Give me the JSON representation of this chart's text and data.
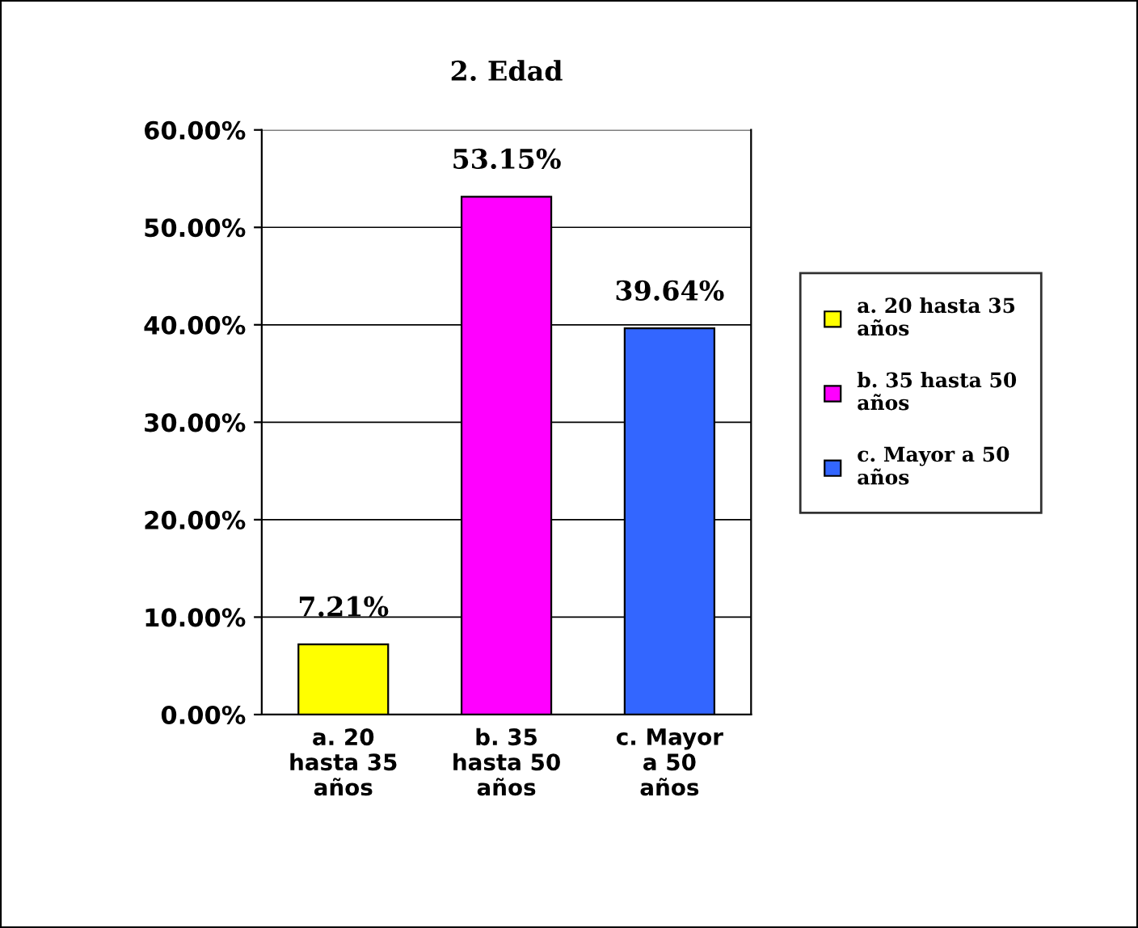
{
  "chart_data": {
    "type": "bar",
    "title": "2. Edad",
    "categories": [
      "a. 20\nhasta 35\naños",
      "b. 35\nhasta 50\naños",
      "c. Mayor\na 50\naños"
    ],
    "series": [
      {
        "name": "a. 20 hasta 35\naños",
        "color": "#ffff00",
        "values": [
          7.21,
          null,
          null
        ],
        "value_labels": [
          "7.21%",
          null,
          null
        ]
      },
      {
        "name": "b. 35 hasta 50\naños",
        "color": "#ff00ff",
        "values": [
          null,
          53.15,
          null
        ],
        "value_labels": [
          null,
          "53.15%",
          null
        ]
      },
      {
        "name": "c. Mayor a 50\naños",
        "color": "#3366ff",
        "values": [
          null,
          null,
          39.64
        ],
        "value_labels": [
          null,
          null,
          "39.64%"
        ]
      }
    ],
    "ylim": [
      0,
      60
    ],
    "yticks": [
      {
        "value": 0,
        "label": "0.00%"
      },
      {
        "value": 10,
        "label": "10.00%"
      },
      {
        "value": 20,
        "label": "20.00%"
      },
      {
        "value": 30,
        "label": "30.00%"
      },
      {
        "value": 40,
        "label": "40.00%"
      },
      {
        "value": 50,
        "label": "50.00%"
      },
      {
        "value": 60,
        "label": "60.00%"
      }
    ],
    "grid": "y",
    "legend": "right"
  }
}
